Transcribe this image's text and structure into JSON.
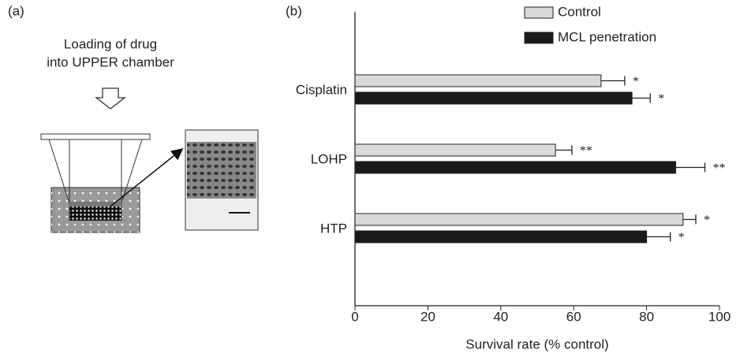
{
  "panel_a": {
    "label": "(a)",
    "caption": [
      "Loading of drug",
      "into UPPER chamber"
    ]
  },
  "chart_data": {
    "type": "barh",
    "panel_label": "(b)",
    "x_label": "Survival rate (% control)",
    "categories": [
      "Cisplatin",
      "LOHP",
      "HTP"
    ],
    "series": [
      {
        "name": "Control",
        "color": "#d9d9d9",
        "values": [
          67.5,
          55,
          90
        ],
        "errors": [
          6.5,
          4.5,
          3.5
        ],
        "significance": [
          "*",
          "**",
          "*"
        ]
      },
      {
        "name": "MCL penetration",
        "color": "#1a1a1a",
        "values": [
          76,
          88,
          80
        ],
        "errors": [
          5,
          8,
          6.5
        ],
        "significance": [
          "*",
          "**",
          "*"
        ]
      }
    ],
    "xlim": [
      0,
      100
    ],
    "xticks": [
      0,
      20,
      40,
      60,
      80,
      100
    ],
    "grid": false
  }
}
